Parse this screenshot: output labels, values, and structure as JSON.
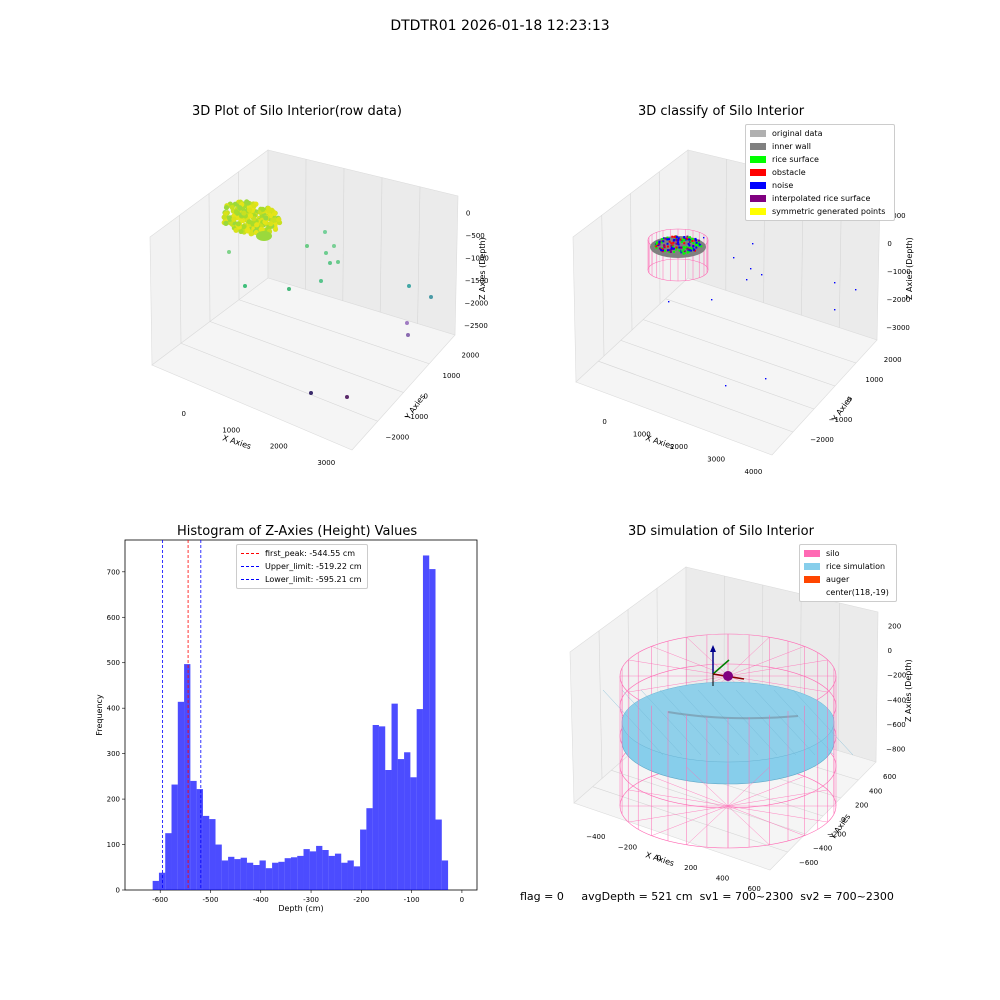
{
  "figure": {
    "suptitle": "DTDTR01 2026-01-18 12:23:13",
    "footer": {
      "flag": "flag = 0",
      "avg_depth": "avgDepth = 521 cm",
      "sv1": "sv1 = 700~2300",
      "sv2": "sv2 = 700~2300"
    }
  },
  "panels": {
    "raw": {
      "title": "3D Plot of Silo Interior(row data)",
      "xlabel": "X Axies",
      "ylabel": "Y Axies",
      "zlabel": "Z Axies (Depth)",
      "xticks": [
        "0",
        "1000",
        "2000",
        "3000"
      ],
      "yticks": [
        "2000",
        "1000",
        "0",
        "−1000",
        "−2000"
      ],
      "zticks": [
        "0",
        "−500",
        "−1000",
        "−1500",
        "−2000",
        "−2500"
      ]
    },
    "classify": {
      "title": "3D classify of Silo Interior",
      "xlabel": "X Axies",
      "ylabel": "Y Axies",
      "zlabel": "Z Axies (Depth)",
      "xticks": [
        "0",
        "1000",
        "2000",
        "3000",
        "4000"
      ],
      "yticks": [
        "2000",
        "1000",
        "0",
        "−1000",
        "−2000"
      ],
      "zticks": [
        "1000",
        "0",
        "−1000",
        "−2000",
        "−3000"
      ],
      "legend": [
        {
          "label": "original data",
          "color": "#b0b0b0"
        },
        {
          "label": "inner wall",
          "color": "#808080"
        },
        {
          "label": "rice surface",
          "color": "#00ff00"
        },
        {
          "label": "obstacle",
          "color": "#ff0000"
        },
        {
          "label": "noise",
          "color": "#0000ff"
        },
        {
          "label": "interpolated rice surface",
          "color": "#800080"
        },
        {
          "label": "symmetric generated points",
          "color": "#ffff00"
        }
      ]
    },
    "simulation": {
      "title": "3D simulation of Silo Interior",
      "xlabel": "X Axies",
      "ylabel": "Y Axies",
      "zlabel": "Z Axies (Depth)",
      "xticks": [
        "−400",
        "−200",
        "0",
        "200",
        "400",
        "600"
      ],
      "yticks": [
        "600",
        "400",
        "200",
        "0",
        "−200",
        "−400",
        "−600"
      ],
      "zticks": [
        "200",
        "0",
        "−200",
        "−400",
        "−600",
        "−800"
      ],
      "legend": [
        {
          "label": "silo",
          "color": "#ff69b4"
        },
        {
          "label": "rice simulation",
          "color": "#87ceeb"
        },
        {
          "label": "auger",
          "color": "#ff4500"
        },
        {
          "label": "center(118,-19)",
          "color": ""
        }
      ]
    }
  },
  "chart_data": [
    {
      "type": "scatter",
      "title": "3D Plot of Silo Interior(row data)",
      "xlabel": "X Axies",
      "ylabel": "Y Axies",
      "zlabel": "Z Axies (Depth)",
      "xlim": [
        -500,
        3700
      ],
      "ylim": [
        -2300,
        2300
      ],
      "zlim": [
        -2800,
        100
      ],
      "colormap": "viridis",
      "cluster": {
        "x_range": [
          -300,
          300
        ],
        "y_range": [
          -300,
          300
        ],
        "z_range": [
          -700,
          -300
        ]
      }
    },
    {
      "type": "scatter",
      "title": "3D classify of Silo Interior",
      "xlabel": "X Axies",
      "ylabel": "Y Axies",
      "zlabel": "Z Axies (Depth)",
      "xlim": [
        -500,
        4000
      ],
      "ylim": [
        -2300,
        2300
      ],
      "zlim": [
        -3500,
        1000
      ],
      "legend_position": "top-right"
    },
    {
      "type": "histogram",
      "title": "Histogram of Z-Axies (Height) Values",
      "xlabel": "Depth (cm)",
      "ylabel": "Frequency",
      "xlim": [
        -670,
        30
      ],
      "ylim": [
        0,
        770
      ],
      "xticks": [
        -600,
        -500,
        -400,
        -300,
        -200,
        -100,
        0
      ],
      "yticks": [
        0,
        100,
        200,
        300,
        400,
        500,
        600,
        700
      ],
      "bin_width": 12.5,
      "bin_start": -615,
      "counts": [
        20,
        38,
        125,
        232,
        414,
        497,
        240,
        222,
        163,
        156,
        100,
        65,
        73,
        68,
        71,
        60,
        55,
        65,
        48,
        60,
        62,
        70,
        72,
        75,
        90,
        85,
        97,
        88,
        75,
        80,
        60,
        65,
        52,
        133,
        180,
        363,
        360,
        264,
        410,
        288,
        303,
        248,
        398,
        736,
        706,
        155,
        65
      ],
      "bar_color": "#0000ff",
      "vlines": [
        {
          "label": "first_peak: -544.55 cm",
          "x": -544.55,
          "color": "#ff0000"
        },
        {
          "label": "Upper_limit: -519.22 cm",
          "x": -519.22,
          "color": "#0000ff"
        },
        {
          "label": "Lower_limit: -595.21 cm",
          "x": -595.21,
          "color": "#0000ff"
        }
      ],
      "legend_position": "top-center"
    },
    {
      "type": "surface",
      "title": "3D simulation of Silo Interior",
      "xlabel": "X Axies",
      "ylabel": "Y Axies",
      "zlabel": "Z Axies (Depth)",
      "xlim": [
        -500,
        700
      ],
      "ylim": [
        -700,
        700
      ],
      "zlim": [
        -900,
        300
      ],
      "center": [
        118,
        -19
      ],
      "legend_position": "top-right"
    }
  ]
}
